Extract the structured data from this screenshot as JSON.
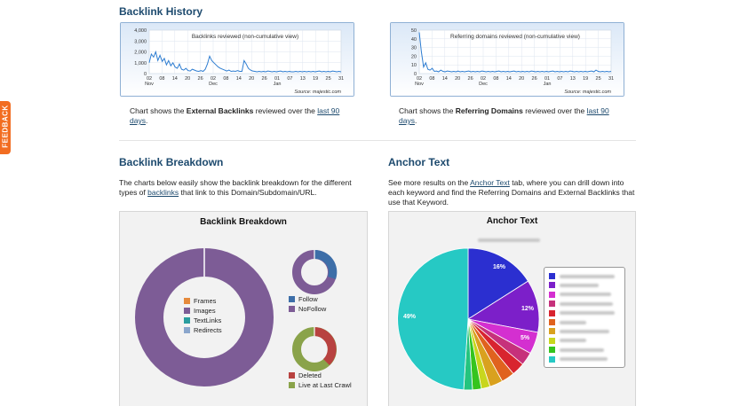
{
  "feedback": {
    "label": "FEEDBACK"
  },
  "history": {
    "title": "Backlink History",
    "chart1": {
      "title": "Backlinks reviewed (non-cumulative view)",
      "y_ticks": [
        "4,000",
        "3,000",
        "2,000",
        "1,000",
        "0"
      ],
      "x_ticks": [
        "02",
        "08",
        "14",
        "20",
        "26",
        "02",
        "08",
        "14",
        "20",
        "26",
        "01",
        "07",
        "13",
        "19",
        "25",
        "31"
      ],
      "months": [
        "Nov",
        "Dec",
        "Jan"
      ],
      "source": "Source: majestic.com",
      "line_color": "#2e7dd1"
    },
    "chart2": {
      "title": "Referring domains reviewed (non-cumulative view)",
      "y_ticks": [
        "50",
        "40",
        "30",
        "20",
        "10",
        "0"
      ],
      "x_ticks": [
        "02",
        "08",
        "14",
        "20",
        "26",
        "02",
        "08",
        "14",
        "20",
        "26",
        "01",
        "07",
        "13",
        "19",
        "25",
        "31"
      ],
      "months": [
        "Nov",
        "Dec",
        "Jan"
      ],
      "source": "Source: majestic.com",
      "line_color": "#2e7dd1"
    },
    "caption1": {
      "pre": "Chart shows the ",
      "bold": "External Backlinks",
      "mid": " reviewed over the ",
      "link": "last 90",
      "link2": "days",
      "post": "."
    },
    "caption2": {
      "pre": "Chart shows the ",
      "bold": "Referring Domains",
      "mid": " reviewed over the ",
      "link": "last 90",
      "link2": "days",
      "post": "."
    }
  },
  "breakdown": {
    "title": "Backlink Breakdown",
    "desc_pre": "The charts below easily show the backlink breakdown for the different",
    "desc_line2_pre": "types of ",
    "desc_link": "backlinks",
    "desc_line2_post": " that link to this Domain/Subdomain/URL.",
    "panel_title": "Backlink Breakdown",
    "type_legend": [
      "Frames",
      "Images",
      "TextLinks",
      "Redirects"
    ],
    "type_colors": [
      "#e58a3c",
      "#7d5c96",
      "#2a9d9f",
      "#8aa6cc"
    ],
    "follow_legend": [
      "Follow",
      "NoFollow"
    ],
    "follow_colors": [
      "#3d6ea8",
      "#7d5c96"
    ],
    "crawl_legend": [
      "Deleted",
      "Live at Last Crawl"
    ],
    "crawl_colors": [
      "#b84240",
      "#8aa34a"
    ]
  },
  "anchor": {
    "title": "Anchor Text",
    "desc_pre": "See more results on the ",
    "desc_link": "Anchor Text",
    "desc_post": " tab, where you can drill down into",
    "desc_line2": "each keyword and find the Referring Domains and External Backlinks that",
    "desc_line3": "use that Keyword.",
    "panel_title": "Anchor Text",
    "slice_labels": [
      "16%",
      "12%",
      "5%",
      "49%"
    ],
    "slice_colors": [
      "#2b2fd0",
      "#7c1fc9",
      "#d42fd0",
      "#c6317b",
      "#d8242f",
      "#e0621e",
      "#d9a11e",
      "#c8d61e",
      "#35c41e",
      "#24c47e",
      "#26c9c4"
    ]
  }
}
